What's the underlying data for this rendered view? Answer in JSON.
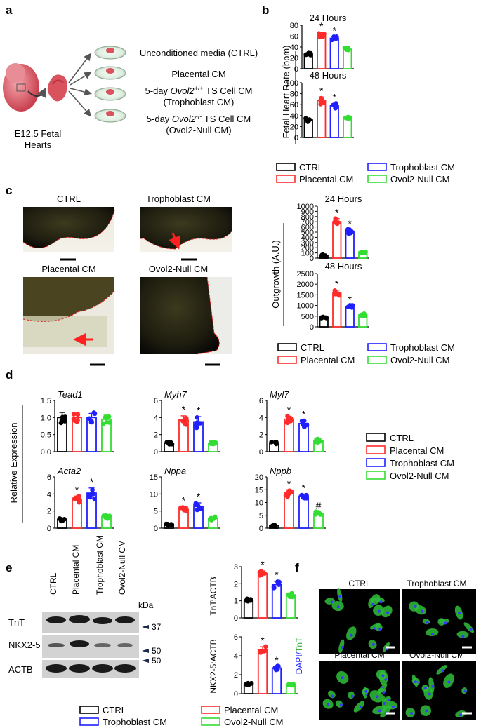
{
  "panel_labels": {
    "a": "a",
    "b": "b",
    "c": "c",
    "d": "d",
    "e": "e",
    "f": "f"
  },
  "colors": {
    "CTRL": "#000000",
    "Placental CM": "#ff2b2b",
    "Trophoblast CM": "#1f1fff",
    "Ovol2-Null CM": "#33dd33"
  },
  "legend": [
    "CTRL",
    "Placental CM",
    "Trophoblast CM",
    "Ovol2-Null CM"
  ],
  "panel_a": {
    "source": "E12.5 Fetal Hearts",
    "conditions": [
      "Unconditioned media (CTRL)",
      "Placental CM",
      "5-day Ovol2+/+ TS Cell CM",
      "(Trophoblast CM)",
      "5-day Ovol2-/- TS Cell CM",
      "(Ovol2-Null CM)"
    ]
  },
  "panel_c_images": [
    "CTRL",
    "Trophoblast CM",
    "Placental CM",
    "Ovol2-Null CM"
  ],
  "panel_e_blot": {
    "lanes": [
      "CTRL",
      "Placental CM",
      "Trophoblast CM",
      "Ovol2-Null CM"
    ],
    "kda": "kDa",
    "rows": [
      "TnT",
      "NKX2-5",
      "ACTB"
    ],
    "markers": [
      "37",
      "50",
      "50"
    ]
  },
  "panel_f": {
    "titles": [
      "CTRL",
      "Trophoblast CM",
      "Placental CM",
      "Ovol2-Null CM"
    ],
    "ylabel_dapi": "DAPI/",
    "ylabel_tnt": "TnT"
  },
  "chart_data": [
    {
      "id": "b_24h",
      "type": "bar",
      "title": "24 Hours",
      "categories": [
        "CTRL",
        "Placental CM",
        "Trophoblast CM",
        "Ovol2-Null CM"
      ],
      "values": [
        27,
        63,
        56,
        36
      ],
      "errors": [
        2,
        4,
        3,
        2
      ],
      "stars": [
        "",
        "*",
        "*",
        ""
      ],
      "ylim": [
        0,
        80
      ],
      "yticks": [
        0,
        20,
        40,
        60,
        80
      ],
      "ylabel": "Fetal Heart Rate (bpm)"
    },
    {
      "id": "b_48h",
      "type": "bar",
      "title": "48 Hours",
      "categories": [
        "CTRL",
        "Placental CM",
        "Trophoblast CM",
        "Ovol2-Null CM"
      ],
      "values": [
        32,
        68,
        58,
        37
      ],
      "errors": [
        3,
        6,
        4,
        2
      ],
      "stars": [
        "",
        "*",
        "*",
        ""
      ],
      "ylim": [
        0,
        100
      ],
      "yticks": [
        0,
        20,
        40,
        60,
        80,
        100
      ]
    },
    {
      "id": "c_24h",
      "type": "bar",
      "title": "24 Hours",
      "categories": [
        "CTRL",
        "Placental CM",
        "Trophoblast CM",
        "Ovol2-Null CM"
      ],
      "values": [
        50,
        700,
        510,
        120
      ],
      "errors": [
        10,
        60,
        40,
        15
      ],
      "stars": [
        "",
        "*",
        "*",
        ""
      ],
      "ylim": [
        0,
        1000
      ],
      "yticks": [
        0,
        100,
        200,
        300,
        400,
        500,
        600,
        700,
        800,
        900,
        1000
      ],
      "ylabel": "Outgrowth (A.U.)"
    },
    {
      "id": "c_48h",
      "type": "bar",
      "title": "48 Hours",
      "categories": [
        "CTRL",
        "Placental CM",
        "Trophoblast CM",
        "Ovol2-Null CM"
      ],
      "values": [
        450,
        1600,
        950,
        560
      ],
      "errors": [
        40,
        120,
        40,
        30
      ],
      "stars": [
        "",
        "*",
        "*",
        ""
      ],
      "ylim": [
        0,
        2500
      ],
      "yticks": [
        0,
        500,
        1000,
        1500,
        2000,
        2500
      ]
    },
    {
      "id": "d_tead1",
      "type": "bar",
      "title": "Tead1",
      "categories": [
        "CTRL",
        "Placental CM",
        "Trophoblast CM",
        "Ovol2-Null CM"
      ],
      "values": [
        1.0,
        1.0,
        1.0,
        0.95
      ],
      "errors": [
        0.15,
        0.15,
        0.12,
        0.12
      ],
      "stars": [
        "",
        "",
        "",
        ""
      ],
      "ylim": [
        0,
        1.5
      ],
      "yticks": [
        0.0,
        0.5,
        1.0,
        1.5
      ],
      "ylabel": "Relative Expression"
    },
    {
      "id": "d_myh7",
      "type": "bar",
      "title": "Myh7",
      "categories": [
        "CTRL",
        "Placental CM",
        "Trophoblast CM",
        "Ovol2-Null CM"
      ],
      "values": [
        1.0,
        3.7,
        3.5,
        1.0
      ],
      "errors": [
        0.1,
        0.5,
        0.6,
        0.1
      ],
      "stars": [
        "",
        "*",
        "*",
        ""
      ],
      "ylim": [
        0,
        6
      ],
      "yticks": [
        0,
        2,
        4,
        6
      ]
    },
    {
      "id": "d_myl7",
      "type": "bar",
      "title": "Myl7",
      "categories": [
        "CTRL",
        "Placental CM",
        "Trophoblast CM",
        "Ovol2-Null CM"
      ],
      "values": [
        1.0,
        3.8,
        3.3,
        1.3
      ],
      "errors": [
        0.1,
        0.35,
        0.35,
        0.2
      ],
      "stars": [
        "",
        "*",
        "*",
        ""
      ],
      "ylim": [
        0,
        6
      ],
      "yticks": [
        0,
        2,
        4,
        6
      ]
    },
    {
      "id": "d_acta2",
      "type": "bar",
      "title": "Acta2",
      "categories": [
        "CTRL",
        "Placental CM",
        "Trophoblast CM",
        "Ovol2-Null CM"
      ],
      "values": [
        1.0,
        3.3,
        4.1,
        1.3
      ],
      "errors": [
        0.15,
        0.45,
        0.6,
        0.2
      ],
      "stars": [
        "",
        "*",
        "*",
        ""
      ],
      "ylim": [
        0,
        6
      ],
      "yticks": [
        0,
        2,
        4,
        6
      ]
    },
    {
      "id": "d_nppa",
      "type": "bar",
      "title": "Nppa",
      "categories": [
        "CTRL",
        "Placental CM",
        "Trophoblast CM",
        "Ovol2-Null CM"
      ],
      "values": [
        1.0,
        5.5,
        6.4,
        2.8
      ],
      "errors": [
        0.1,
        0.8,
        1.0,
        0.5
      ],
      "stars": [
        "",
        "*",
        "*",
        ""
      ],
      "ylim": [
        0,
        15
      ],
      "yticks": [
        0,
        5,
        10,
        15
      ]
    },
    {
      "id": "d_nppb",
      "type": "bar",
      "title": "Nppb",
      "categories": [
        "CTRL",
        "Placental CM",
        "Trophoblast CM",
        "Ovol2-Null CM"
      ],
      "values": [
        1.0,
        13.7,
        12.5,
        5.8
      ],
      "errors": [
        0.15,
        1.3,
        0.8,
        0.5
      ],
      "stars": [
        "",
        "*",
        "*",
        "#"
      ],
      "ylim": [
        0,
        20
      ],
      "yticks": [
        0,
        5,
        10,
        15,
        20
      ]
    },
    {
      "id": "e_tnt",
      "type": "bar",
      "title": "",
      "categories": [
        "CTRL",
        "Placental CM",
        "Trophoblast CM",
        "Ovol2-Null CM"
      ],
      "values": [
        1.0,
        2.6,
        1.95,
        1.35
      ],
      "errors": [
        0.1,
        0.15,
        0.2,
        0.1
      ],
      "stars": [
        "",
        "*",
        "*",
        ""
      ],
      "ylim": [
        0,
        3
      ],
      "yticks": [
        0,
        1,
        2,
        3
      ],
      "ylabel": "TnT:ACTB"
    },
    {
      "id": "e_nkx",
      "type": "bar",
      "title": "",
      "categories": [
        "CTRL",
        "Placental CM",
        "Trophoblast CM",
        "Ovol2-Null CM"
      ],
      "values": [
        1.0,
        4.6,
        2.7,
        1.0
      ],
      "errors": [
        0.15,
        0.35,
        0.2,
        0.1
      ],
      "stars": [
        "",
        "*",
        "*",
        ""
      ],
      "ylim": [
        0,
        6
      ],
      "yticks": [
        0,
        2,
        4,
        6
      ],
      "ylabel": "NKX2-5:ACTB"
    }
  ]
}
